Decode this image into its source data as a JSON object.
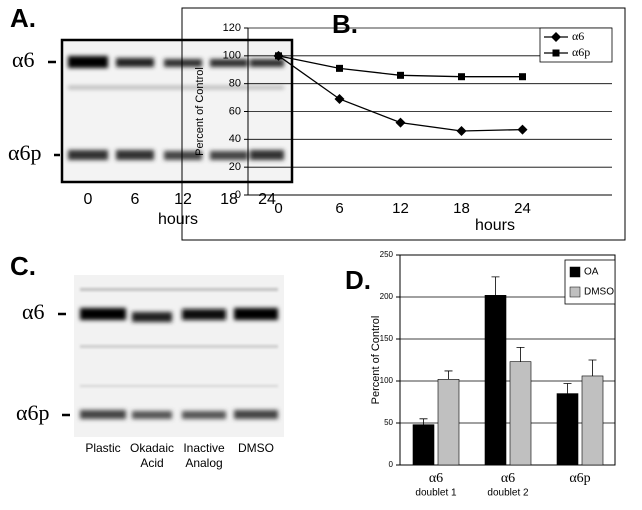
{
  "panel_labels": [
    "A.",
    "B.",
    "C.",
    "D."
  ],
  "blot_a": {
    "bands": [
      "α6",
      "α6p"
    ],
    "lanes": [
      "0",
      "6",
      "12",
      "18",
      "24"
    ],
    "xlabel": "hours"
  },
  "blot_c": {
    "bands": [
      "α6",
      "α6p"
    ],
    "lanes": [
      [
        "Plastic"
      ],
      [
        "Okadaic",
        "Acid"
      ],
      [
        "Inactive",
        "Analog"
      ],
      [
        "DMSO"
      ]
    ]
  },
  "chart_data": [
    {
      "type": "line",
      "ylabel": "Percent of Control",
      "xlabel": "hours",
      "categories": [
        "0",
        "6",
        "12",
        "18",
        "24"
      ],
      "series": [
        {
          "name": "α6",
          "color": "#000000",
          "marker": "diamond",
          "values": [
            100,
            69,
            52,
            46,
            47
          ]
        },
        {
          "name": "α6p",
          "color": "#000000",
          "marker": "square",
          "values": [
            100,
            91,
            86,
            85,
            85
          ]
        }
      ],
      "ylim": [
        0,
        120
      ],
      "yticks": [
        0,
        20,
        40,
        60,
        80,
        100,
        120
      ],
      "grid": true,
      "legend": "upper-right"
    },
    {
      "type": "bar",
      "ylabel": "Percent of Control",
      "categories": [
        [
          "α6",
          "doublet 1"
        ],
        [
          "α6",
          "doublet 2"
        ],
        [
          "α6p"
        ]
      ],
      "series": [
        {
          "name": "OA",
          "color": "#000000",
          "values": [
            48,
            202,
            85
          ],
          "errors": [
            7,
            22,
            12
          ]
        },
        {
          "name": "DMSO",
          "color": "#c0c0c0",
          "values": [
            102,
            123,
            106
          ],
          "errors": [
            10,
            17,
            19
          ]
        }
      ],
      "ylim": [
        0,
        250
      ],
      "yticks": [
        0,
        50,
        100,
        150,
        200,
        250
      ],
      "grid": true,
      "legend": "upper-right"
    }
  ]
}
